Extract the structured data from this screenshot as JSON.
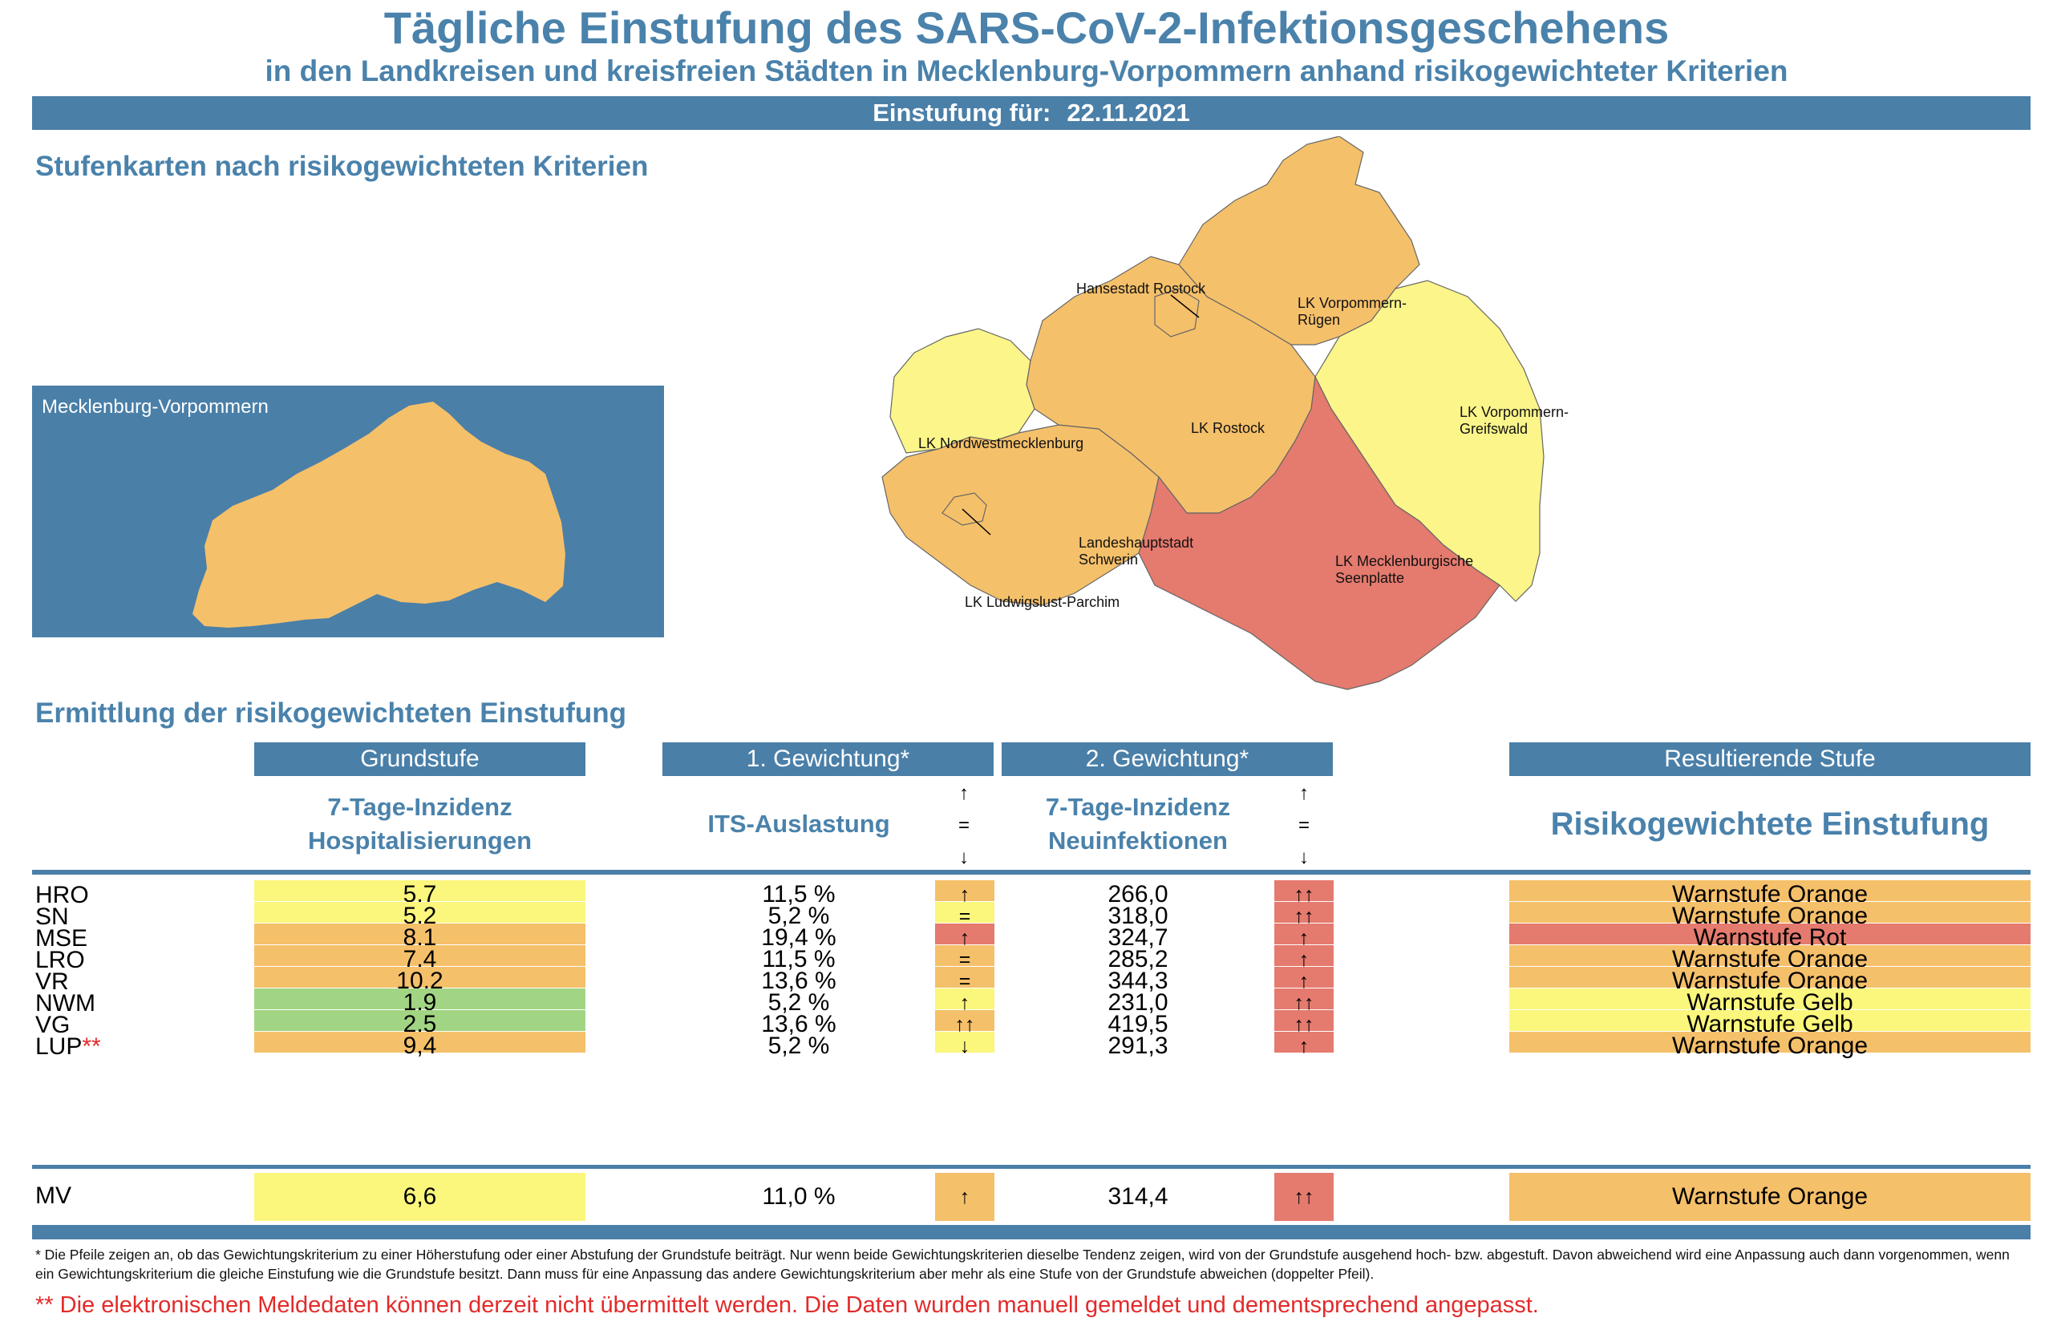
{
  "header": {
    "title": "Tägliche Einstufung des SARS-CoV-2-Infektionsgeschehens",
    "subtitle": "in den Landkreisen und kreisfreien Städten in Mecklenburg-Vorpommern anhand risikogewichteter Kriterien",
    "date_label": "Einstufung für:",
    "date_value": "22.11.2021"
  },
  "map_section": {
    "heading": "Stufenkarten nach risikogewichteten Kriterien",
    "overview_label": "Mecklenburg-Vorpommern",
    "regions": {
      "hro": "Hansestadt Rostock",
      "vr_1": "LK Vorpommern-",
      "vr_2": "Rügen",
      "nwm": "LK Nordwestmecklenburg",
      "lro": "LK Rostock",
      "vg_1": "LK Vorpommern-",
      "vg_2": "Greifswald",
      "sn_1": "Landeshauptstadt",
      "sn_2": "Schwerin",
      "mse_1": "LK Mecklenburgische",
      "mse_2": "Seenplatte",
      "lup": "LK Ludwigslust-Parchim"
    }
  },
  "table_section": {
    "heading": "Ermittlung der risikogewichteten Einstufung",
    "col_headers": {
      "grundstufe": "Grundstufe",
      "gew1": "1. Gewichtung*",
      "gew2": "2. Gewichtung*",
      "result": "Resultierende Stufe"
    },
    "sub_headers": {
      "g_line1": "7-Tage-Inzidenz",
      "g_line2": "Hospitalisierungen",
      "its": "ITS-Auslastung",
      "n_line1": "7-Tage-Inzidenz",
      "n_line2": "Neuinfektionen",
      "result": "Risikogewichtete Einstufung"
    },
    "arrow_legend": {
      "up": "↑",
      "eq": "=",
      "down": "↓"
    },
    "rows": [
      {
        "label": "HRO",
        "mark": "",
        "grund": "5,7",
        "its": "11,5 %",
        "a1": "↑",
        "inz": "266,0",
        "a2": "↑↑",
        "stufe": "Warnstufe Orange"
      },
      {
        "label": "SN",
        "mark": "",
        "grund": "5,2",
        "its": "5,2 %",
        "a1": "=",
        "inz": "318,0",
        "a2": "↑↑",
        "stufe": "Warnstufe Orange"
      },
      {
        "label": "MSE",
        "mark": "",
        "grund": "8,1",
        "its": "19,4 %",
        "a1": "↑",
        "inz": "324,7",
        "a2": "↑",
        "stufe": "Warnstufe Rot"
      },
      {
        "label": "LRO",
        "mark": "",
        "grund": "7,4",
        "its": "11,5 %",
        "a1": "=",
        "inz": "285,2",
        "a2": "↑",
        "stufe": "Warnstufe Orange"
      },
      {
        "label": "VR",
        "mark": "",
        "grund": "10,2",
        "its": "13,6 %",
        "a1": "=",
        "inz": "344,3",
        "a2": "↑",
        "stufe": "Warnstufe Orange"
      },
      {
        "label": "NWM",
        "mark": "",
        "grund": "1,9",
        "its": "5,2 %",
        "a1": "↑",
        "inz": "231,0",
        "a2": "↑↑",
        "stufe": "Warnstufe Gelb"
      },
      {
        "label": "VG",
        "mark": "",
        "grund": "2,5",
        "its": "13,6 %",
        "a1": "↑↑",
        "inz": "419,5",
        "a2": "↑↑",
        "stufe": "Warnstufe Gelb"
      },
      {
        "label": "LUP",
        "mark": "**",
        "grund": "9,4",
        "its": "5,2 %",
        "a1": "↓",
        "inz": "291,3",
        "a2": "↑",
        "stufe": "Warnstufe Orange"
      }
    ],
    "total": {
      "label": "MV",
      "grund": "6,6",
      "its": "11,0 %",
      "a1": "↑",
      "inz": "314,4",
      "a2": "↑↑",
      "stufe": "Warnstufe Orange"
    }
  },
  "footnotes": {
    "arrows_note": "* Die Pfeile zeigen an, ob das Gewichtungskriterium zu einer Höherstufung oder einer Abstufung der Grundstufe beiträgt. Nur wenn beide Gewichtungskriterien dieselbe Tendenz zeigen, wird von der Grundstufe ausgehend hoch- bzw. abgestuft.  Davon abweichend wird eine Anpassung auch dann vorgenommen, wenn ein Gewichtungskriterium die gleiche Einstufung wie die Grundstufe besitzt. Dann muss für eine Anpassung das andere Gewichtungskriterium aber mehr als eine Stufe von der Grundstufe abweichen (doppelter Pfeil).",
    "manual_note": "** Die elektronischen Meldedaten können derzeit nicht übermittelt werden. Die Daten wurden manuell gemeldet und dementsprechend angepasst."
  },
  "colors": {
    "blue": "#4a7fa8",
    "yellow": "#fbf67c",
    "orange": "#f5c06a",
    "red": "#e57a6e",
    "green": "#a2d583",
    "map_orange": "#f5c06a",
    "map_yellow": "#fbf58a",
    "map_red": "#e57a6e"
  }
}
